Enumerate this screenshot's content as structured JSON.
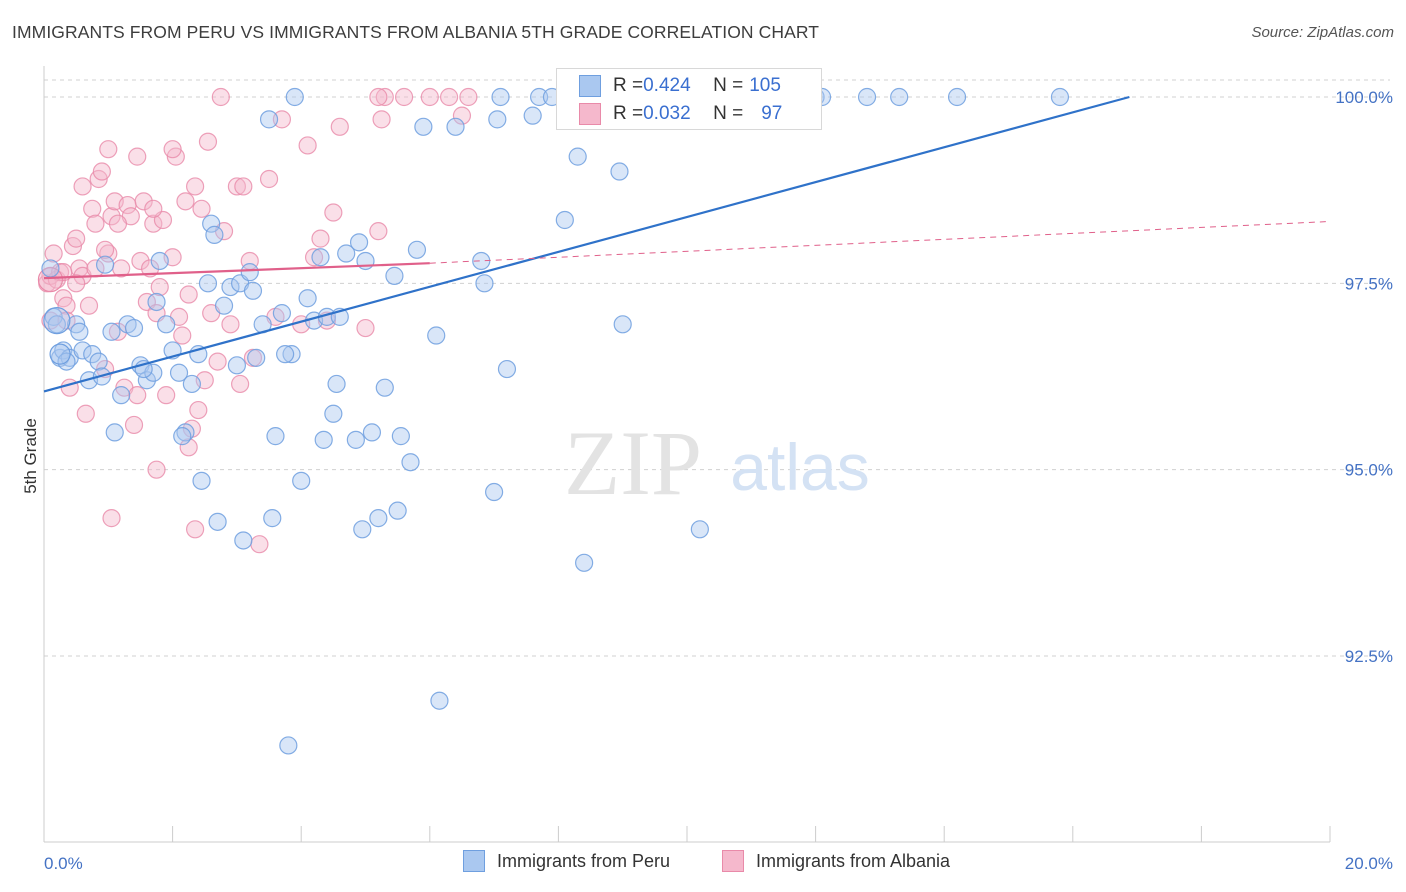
{
  "title": "IMMIGRANTS FROM PERU VS IMMIGRANTS FROM ALBANIA 5TH GRADE CORRELATION CHART",
  "source": "Source: ZipAtlas.com",
  "watermark": {
    "zip": "ZIP",
    "atlas": "atlas"
  },
  "colors": {
    "peru_fill": "#aac8f0",
    "peru_stroke": "#6f9fdf",
    "peru_line": "#2f72c9",
    "albania_fill": "#f5b8cc",
    "albania_stroke": "#e98aa9",
    "albania_line": "#e0608a",
    "grid": "#d0d0d0",
    "tick_text": "#4472c4"
  },
  "legend": {
    "rows": [
      {
        "r_label": "R = ",
        "r_value": "0.424",
        "n_label": "N = ",
        "n_value": "105"
      },
      {
        "r_label": "R = ",
        "r_value": "0.032",
        "n_label": "N = ",
        "n_value": "97"
      }
    ]
  },
  "chart_data": {
    "type": "scatter",
    "title": "IMMIGRANTS FROM PERU VS IMMIGRANTS FROM ALBANIA 5TH GRADE CORRELATION CHART",
    "xlabel": "",
    "ylabel": "5th Grade",
    "xlim": [
      0,
      20
    ],
    "ylim": [
      90.8,
      100.3
    ],
    "x_tick_labels": [
      "0.0%",
      "20.0%"
    ],
    "y_ticks": [
      92.5,
      95.0,
      97.5,
      100.0
    ],
    "y_tick_labels": [
      "92.5%",
      "95.0%",
      "97.5%",
      "100.0%"
    ],
    "grid": true,
    "legend_position": "bottom",
    "series": [
      {
        "name": "Immigrants from Peru",
        "R": 0.424,
        "N": 105,
        "trend": {
          "x": [
            0,
            20
          ],
          "y": [
            96.05,
            100.73
          ]
        },
        "points": [
          [
            0.1,
            97.7
          ],
          [
            0.15,
            97.05
          ],
          [
            0.2,
            96.95
          ],
          [
            0.25,
            96.5
          ],
          [
            0.3,
            96.6
          ],
          [
            0.4,
            96.5
          ],
          [
            0.5,
            96.95
          ],
          [
            0.55,
            96.85
          ],
          [
            0.6,
            96.6
          ],
          [
            0.7,
            96.2
          ],
          [
            0.75,
            96.55
          ],
          [
            0.85,
            96.45
          ],
          [
            0.9,
            96.25
          ],
          [
            0.95,
            97.75
          ],
          [
            1.05,
            96.85
          ],
          [
            1.1,
            95.5
          ],
          [
            1.2,
            96.0
          ],
          [
            1.3,
            96.95
          ],
          [
            1.4,
            96.9
          ],
          [
            1.5,
            96.4
          ],
          [
            1.6,
            96.2
          ],
          [
            1.7,
            96.3
          ],
          [
            1.75,
            97.25
          ],
          [
            1.8,
            97.8
          ],
          [
            1.9,
            96.95
          ],
          [
            2.0,
            96.6
          ],
          [
            2.1,
            96.3
          ],
          [
            2.2,
            95.5
          ],
          [
            2.3,
            96.15
          ],
          [
            2.4,
            96.55
          ],
          [
            2.45,
            94.85
          ],
          [
            2.55,
            97.5
          ],
          [
            2.6,
            98.3
          ],
          [
            2.65,
            98.15
          ],
          [
            2.7,
            94.3
          ],
          [
            2.8,
            97.2
          ],
          [
            2.9,
            97.45
          ],
          [
            3.0,
            96.4
          ],
          [
            3.05,
            97.5
          ],
          [
            3.1,
            94.05
          ],
          [
            3.2,
            97.65
          ],
          [
            3.25,
            97.4
          ],
          [
            3.3,
            96.5
          ],
          [
            3.4,
            96.95
          ],
          [
            3.5,
            99.7
          ],
          [
            3.55,
            94.35
          ],
          [
            3.6,
            95.45
          ],
          [
            3.7,
            97.1
          ],
          [
            3.8,
            91.3
          ],
          [
            3.85,
            96.55
          ],
          [
            3.9,
            100.0
          ],
          [
            4.0,
            94.85
          ],
          [
            4.1,
            97.3
          ],
          [
            4.2,
            97.0
          ],
          [
            4.3,
            97.85
          ],
          [
            4.35,
            95.4
          ],
          [
            4.4,
            97.05
          ],
          [
            4.5,
            95.75
          ],
          [
            4.55,
            96.15
          ],
          [
            4.6,
            97.05
          ],
          [
            4.7,
            97.9
          ],
          [
            4.85,
            95.4
          ],
          [
            4.9,
            98.05
          ],
          [
            4.95,
            94.2
          ],
          [
            5.0,
            97.8
          ],
          [
            5.1,
            95.5
          ],
          [
            5.2,
            94.35
          ],
          [
            5.3,
            96.1
          ],
          [
            5.45,
            97.6
          ],
          [
            5.5,
            94.45
          ],
          [
            5.55,
            95.45
          ],
          [
            5.7,
            95.1
          ],
          [
            5.8,
            97.95
          ],
          [
            5.9,
            99.6
          ],
          [
            6.1,
            96.8
          ],
          [
            6.15,
            91.9
          ],
          [
            6.4,
            99.6
          ],
          [
            6.8,
            97.8
          ],
          [
            6.85,
            97.5
          ],
          [
            7.0,
            94.7
          ],
          [
            7.05,
            99.7
          ],
          [
            7.1,
            100.0
          ],
          [
            7.2,
            96.35
          ],
          [
            7.6,
            99.75
          ],
          [
            7.7,
            100.0
          ],
          [
            7.9,
            100.0
          ],
          [
            8.1,
            98.35
          ],
          [
            8.3,
            99.2
          ],
          [
            8.4,
            93.75
          ],
          [
            8.7,
            100.0
          ],
          [
            8.95,
            99.0
          ],
          [
            9.0,
            96.95
          ],
          [
            9.5,
            100.0
          ],
          [
            10.2,
            94.2
          ],
          [
            10.85,
            100.0
          ],
          [
            12.0,
            100.0
          ],
          [
            12.1,
            100.0
          ],
          [
            12.8,
            100.0
          ],
          [
            13.3,
            100.0
          ],
          [
            14.2,
            100.0
          ],
          [
            15.8,
            100.0
          ],
          [
            2.15,
            95.45
          ],
          [
            1.55,
            96.35
          ],
          [
            0.35,
            96.45
          ],
          [
            3.75,
            96.55
          ]
        ]
      },
      {
        "name": "Immigrants from Albania",
        "R": 0.032,
        "N": 97,
        "trend": {
          "x": [
            0,
            6
          ],
          "y": [
            97.57,
            97.77
          ]
        },
        "trend_extension": {
          "x": [
            6,
            20
          ],
          "y": [
            97.77,
            98.33
          ]
        },
        "points": [
          [
            0.05,
            97.5
          ],
          [
            0.1,
            97.6
          ],
          [
            0.1,
            97.0
          ],
          [
            0.15,
            97.9
          ],
          [
            0.2,
            97.55
          ],
          [
            0.25,
            97.65
          ],
          [
            0.3,
            97.3
          ],
          [
            0.35,
            97.2
          ],
          [
            0.4,
            96.1
          ],
          [
            0.45,
            98.0
          ],
          [
            0.5,
            98.1
          ],
          [
            0.55,
            97.7
          ],
          [
            0.6,
            97.6
          ],
          [
            0.6,
            98.8
          ],
          [
            0.7,
            97.2
          ],
          [
            0.75,
            98.5
          ],
          [
            0.8,
            98.3
          ],
          [
            0.85,
            98.9
          ],
          [
            0.9,
            99.0
          ],
          [
            0.95,
            96.35
          ],
          [
            1.0,
            97.9
          ],
          [
            1.05,
            98.4
          ],
          [
            1.1,
            98.6
          ],
          [
            1.15,
            96.85
          ],
          [
            1.2,
            97.7
          ],
          [
            1.25,
            96.1
          ],
          [
            1.3,
            98.55
          ],
          [
            1.35,
            98.4
          ],
          [
            1.4,
            95.6
          ],
          [
            1.45,
            96.0
          ],
          [
            1.5,
            97.8
          ],
          [
            1.55,
            98.6
          ],
          [
            1.6,
            97.25
          ],
          [
            1.65,
            97.7
          ],
          [
            1.7,
            98.3
          ],
          [
            1.75,
            97.1
          ],
          [
            1.8,
            97.45
          ],
          [
            1.85,
            98.35
          ],
          [
            1.9,
            96.0
          ],
          [
            2.0,
            97.85
          ],
          [
            2.05,
            99.2
          ],
          [
            2.1,
            97.05
          ],
          [
            2.15,
            96.8
          ],
          [
            2.2,
            98.6
          ],
          [
            2.25,
            97.35
          ],
          [
            2.3,
            95.55
          ],
          [
            2.35,
            98.8
          ],
          [
            2.4,
            95.8
          ],
          [
            2.45,
            98.5
          ],
          [
            2.5,
            96.2
          ],
          [
            2.55,
            99.4
          ],
          [
            2.6,
            97.1
          ],
          [
            2.7,
            96.45
          ],
          [
            2.8,
            98.2
          ],
          [
            2.9,
            96.95
          ],
          [
            3.0,
            98.8
          ],
          [
            3.05,
            96.15
          ],
          [
            3.1,
            98.8
          ],
          [
            3.2,
            97.8
          ],
          [
            3.25,
            96.5
          ],
          [
            3.35,
            94.0
          ],
          [
            3.5,
            98.9
          ],
          [
            3.6,
            97.05
          ],
          [
            3.7,
            99.7
          ],
          [
            4.0,
            96.95
          ],
          [
            4.1,
            99.35
          ],
          [
            4.2,
            97.85
          ],
          [
            4.3,
            98.1
          ],
          [
            4.4,
            97.0
          ],
          [
            4.5,
            98.45
          ],
          [
            4.6,
            99.6
          ],
          [
            5.0,
            96.9
          ],
          [
            5.2,
            98.2
          ],
          [
            5.3,
            100.0
          ],
          [
            5.6,
            100.0
          ],
          [
            6.0,
            100.0
          ],
          [
            6.3,
            100.0
          ],
          [
            6.5,
            99.75
          ],
          [
            6.6,
            100.0
          ],
          [
            1.0,
            99.3
          ],
          [
            1.15,
            98.3
          ],
          [
            0.95,
            97.95
          ],
          [
            0.3,
            97.65
          ],
          [
            0.35,
            97.0
          ],
          [
            1.45,
            99.2
          ],
          [
            1.7,
            98.5
          ],
          [
            1.75,
            95.0
          ],
          [
            2.0,
            99.3
          ],
          [
            2.25,
            95.3
          ],
          [
            2.35,
            94.2
          ],
          [
            0.5,
            97.5
          ],
          [
            0.65,
            95.75
          ],
          [
            1.05,
            94.35
          ],
          [
            2.75,
            100.0
          ],
          [
            5.2,
            100.0
          ],
          [
            5.25,
            99.7
          ],
          [
            0.8,
            97.7
          ]
        ]
      }
    ]
  }
}
